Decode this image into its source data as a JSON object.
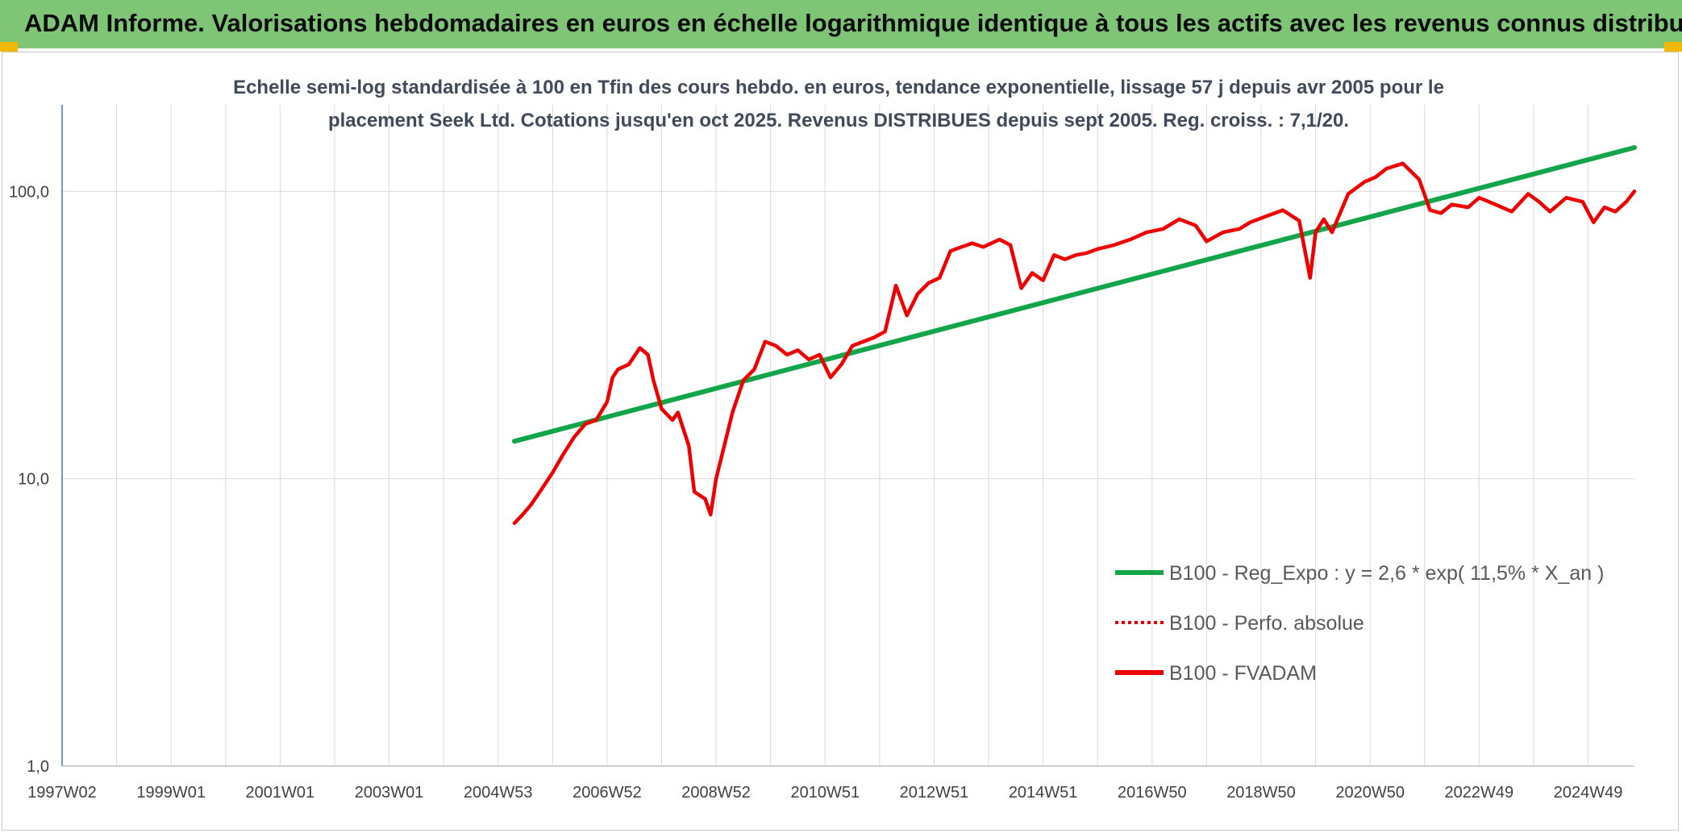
{
  "banner": {
    "title": "ADAM Informe. Valorisations hebdomadaires en euros en échelle logarithmique identique à tous les actifs avec les revenus connus distribués"
  },
  "colors": {
    "banner_bg": "#7ec676",
    "corner_accent": "#f2b700",
    "trend_line": "#12a54a",
    "price_line": "#ee0000",
    "grid": "#d9d9d9",
    "axis": "#4472c4"
  },
  "chart_data": {
    "type": "line",
    "title_lines": [
      "Echelle semi-log standardisée à 100 en Tfin des cours hebdo. en euros, tendance exponentielle, lissage 57 j depuis avr 2005 pour le",
      "placement Seek Ltd. Cotations jusqu'en oct 2025. Revenus DISTRIBUES depuis sept 2005. Reg. croiss. : 7,1/20."
    ],
    "y_scale": "log",
    "ylim": [
      1,
      200
    ],
    "y_ticks": [
      1,
      10,
      100
    ],
    "y_tick_labels": [
      "1,0",
      "10,0",
      "100,0"
    ],
    "xlim": [
      1997.0,
      2025.85
    ],
    "x_tick_labels": [
      "1997W02",
      "1999W01",
      "2001W01",
      "2003W01",
      "2004W53",
      "2006W52",
      "2008W52",
      "2010W51",
      "2012W51",
      "2014W51",
      "2016W50",
      "2018W50",
      "2020W50",
      "2022W49",
      "2024W49"
    ],
    "x_tick_positions": [
      1997.0,
      1999.0,
      2001.0,
      2003.0,
      2005.0,
      2007.0,
      2009.0,
      2011.0,
      2013.0,
      2015.0,
      2017.0,
      2019.0,
      2021.0,
      2023.0,
      2025.0
    ],
    "grid": true,
    "legend_position": "bottom-right",
    "series": [
      {
        "name": "B100 - Reg_Expo : y = 2,6 * exp( 11,5% *  X_an )",
        "style": "solid",
        "color": "#12a54a",
        "x": [
          2005.3,
          2025.85
        ],
        "y": [
          13.5,
          142
        ]
      },
      {
        "name": "B100 - Perfo. absolue",
        "style": "dotted",
        "color": "#ee0000",
        "x": [],
        "y": []
      },
      {
        "name": "B100 - FVADAM",
        "style": "solid",
        "color": "#ee0000",
        "x": [
          2005.3,
          2005.45,
          2005.6,
          2005.8,
          2006.0,
          2006.2,
          2006.4,
          2006.6,
          2006.8,
          2007.0,
          2007.1,
          2007.2,
          2007.4,
          2007.6,
          2007.75,
          2007.85,
          2008.0,
          2008.2,
          2008.3,
          2008.5,
          2008.6,
          2008.8,
          2008.9,
          2009.0,
          2009.15,
          2009.3,
          2009.5,
          2009.7,
          2009.9,
          2010.1,
          2010.3,
          2010.5,
          2010.7,
          2010.9,
          2011.1,
          2011.3,
          2011.5,
          2011.7,
          2011.9,
          2012.1,
          2012.3,
          2012.5,
          2012.7,
          2012.9,
          2013.1,
          2013.3,
          2013.5,
          2013.7,
          2013.9,
          2014.2,
          2014.4,
          2014.6,
          2014.8,
          2015.0,
          2015.2,
          2015.4,
          2015.6,
          2015.8,
          2016.0,
          2016.3,
          2016.6,
          2016.9,
          2017.2,
          2017.5,
          2017.8,
          2018.0,
          2018.3,
          2018.6,
          2018.8,
          2019.1,
          2019.4,
          2019.7,
          2019.9,
          2020.0,
          2020.15,
          2020.3,
          2020.6,
          2020.9,
          2021.1,
          2021.3,
          2021.6,
          2021.9,
          2022.1,
          2022.3,
          2022.5,
          2022.8,
          2023.0,
          2023.3,
          2023.6,
          2023.9,
          2024.1,
          2024.3,
          2024.6,
          2024.9,
          2025.1,
          2025.3,
          2025.5,
          2025.7,
          2025.85
        ],
        "y": [
          7.0,
          7.5,
          8.1,
          9.2,
          10.5,
          12.2,
          14.0,
          15.5,
          16.0,
          18.5,
          22.5,
          24.0,
          25.0,
          28.5,
          27.0,
          22.0,
          17.5,
          16.0,
          17.0,
          13.0,
          9.0,
          8.5,
          7.5,
          10.0,
          13.0,
          17.0,
          22.0,
          24.0,
          30.0,
          29.0,
          27.0,
          28.0,
          26.0,
          27.0,
          22.5,
          25.0,
          29.0,
          30.0,
          31.0,
          32.5,
          47.0,
          37.0,
          44.0,
          48.0,
          50.0,
          62.0,
          64.0,
          66.0,
          64.0,
          68.0,
          65.0,
          46.0,
          52.0,
          49.0,
          60.0,
          58.0,
          60.0,
          61.0,
          63.0,
          65.0,
          68.0,
          72.0,
          74.0,
          80.0,
          76.0,
          67.0,
          72.0,
          74.0,
          78.0,
          82.0,
          86.0,
          79.0,
          50.0,
          72.0,
          80.0,
          72.0,
          98.0,
          108.0,
          112.0,
          120.0,
          125.0,
          110.0,
          86.0,
          84.0,
          90.0,
          88.0,
          95.0,
          90.0,
          85.0,
          98.0,
          92.0,
          85.0,
          95.0,
          92.0,
          78.0,
          88.0,
          85.0,
          92.0,
          100.0
        ]
      }
    ]
  }
}
